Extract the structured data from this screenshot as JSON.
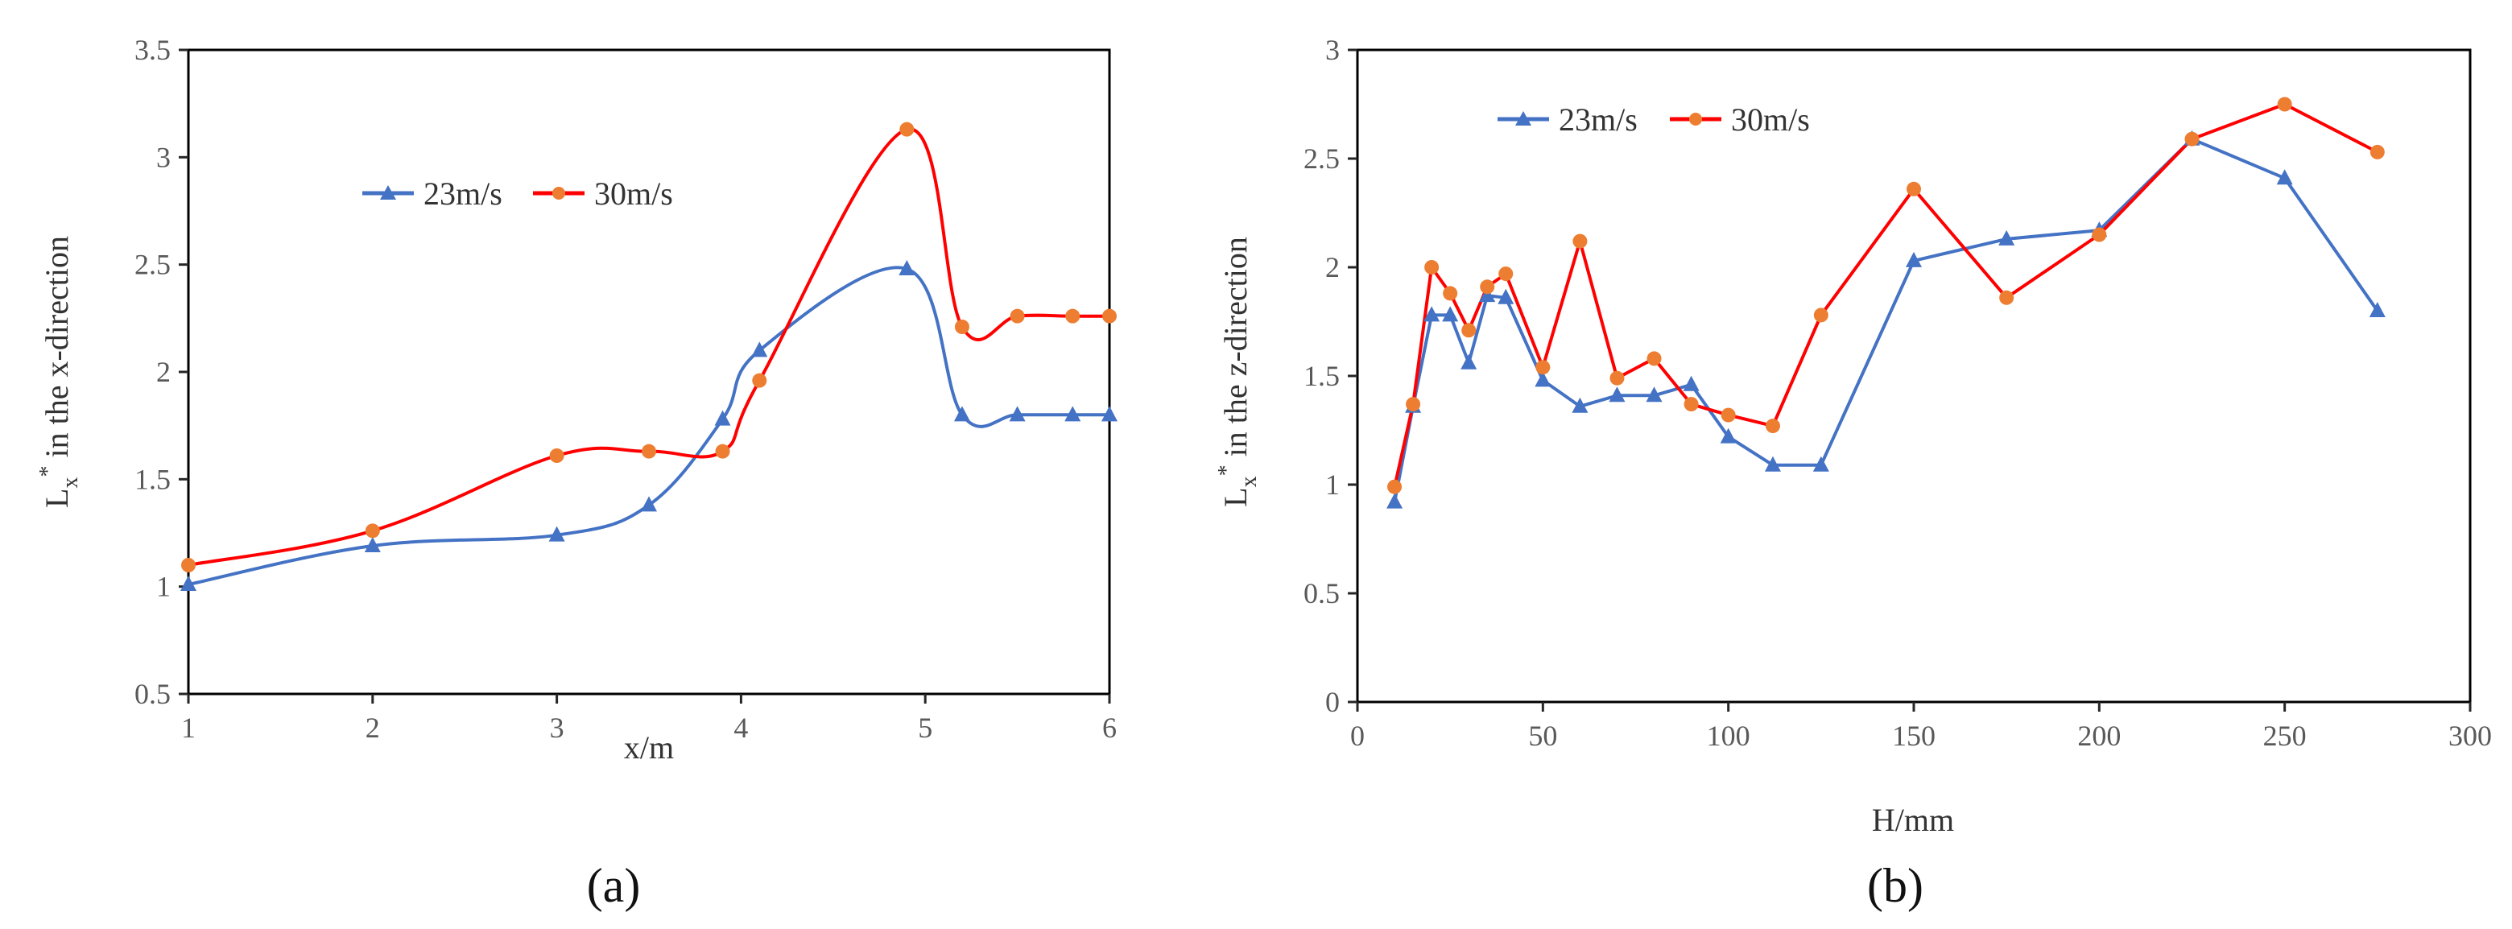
{
  "colors": {
    "series_blue": "#4472C4",
    "series_red": "#FF0000",
    "marker_orange": "#ED7D31",
    "axis": "#262626",
    "frame": "#000000"
  },
  "chart_data": [
    {
      "type": "line",
      "panel_label": "(a)",
      "xlabel": "x/m",
      "ylabel_main": "L",
      "ylabel_sub": "x",
      "ylabel_sup": "*",
      "ylabel_rest": " in the x-direction",
      "xlim": [
        1,
        6
      ],
      "ylim": [
        0.5,
        3.5
      ],
      "xticks": [
        "1",
        "2",
        "3",
        "4",
        "5",
        "6"
      ],
      "yticks": [
        "0.5",
        "1",
        "1.5",
        "2",
        "2.5",
        "3",
        "3.5"
      ],
      "smooth": true,
      "legend_position": "top-left",
      "series": [
        {
          "name": "23m/s",
          "color": "#4472C4",
          "marker": "triangle",
          "x": [
            1,
            2,
            3,
            3.5,
            3.9,
            4.1,
            4.9,
            5.2,
            5.5,
            5.8,
            6
          ],
          "y": [
            1.01,
            1.19,
            1.24,
            1.38,
            1.78,
            2.1,
            2.48,
            1.8,
            1.8,
            1.8,
            1.8
          ]
        },
        {
          "name": "30m/s",
          "color": "#FF0000",
          "marker": "circle",
          "x": [
            1,
            2,
            3,
            3.5,
            3.9,
            4.1,
            4.9,
            5.2,
            5.5,
            5.8,
            6
          ],
          "y": [
            1.1,
            1.26,
            1.61,
            1.63,
            1.63,
            1.96,
            3.13,
            2.21,
            2.26,
            2.26,
            2.26
          ]
        }
      ]
    },
    {
      "type": "line",
      "panel_label": "(b)",
      "xlabel": "H/mm",
      "ylabel_main": "L",
      "ylabel_sub": "x",
      "ylabel_sup": "*",
      "ylabel_rest": " in the z-direction",
      "xlim": [
        0,
        300
      ],
      "ylim": [
        0,
        3
      ],
      "xticks": [
        "0",
        "50",
        "100",
        "150",
        "200",
        "250",
        "300"
      ],
      "yticks": [
        "0",
        "0.5",
        "1",
        "1.5",
        "2",
        "2.5",
        "3"
      ],
      "smooth": false,
      "legend_position": "top-left",
      "series": [
        {
          "name": "23m/s",
          "color": "#4472C4",
          "marker": "triangle",
          "x": [
            10,
            15,
            20,
            25,
            30,
            35,
            40,
            50,
            60,
            70,
            80,
            90,
            100,
            112,
            125,
            150,
            175,
            200,
            225,
            250,
            275
          ],
          "y": [
            0.92,
            1.36,
            1.78,
            1.78,
            1.56,
            1.87,
            1.86,
            1.48,
            1.36,
            1.41,
            1.41,
            1.46,
            1.22,
            1.09,
            1.09,
            2.03,
            2.13,
            2.17,
            2.59,
            2.41,
            1.8
          ]
        },
        {
          "name": "30m/s",
          "color": "#FF0000",
          "marker": "circle",
          "x": [
            10,
            15,
            20,
            25,
            30,
            35,
            40,
            50,
            60,
            70,
            80,
            90,
            100,
            112,
            125,
            150,
            175,
            200,
            225,
            250,
            275
          ],
          "y": [
            0.99,
            1.37,
            2.0,
            1.88,
            1.71,
            1.91,
            1.97,
            1.54,
            2.12,
            1.49,
            1.58,
            1.37,
            1.32,
            1.27,
            1.78,
            2.36,
            1.86,
            2.15,
            2.59,
            2.75,
            2.53
          ]
        }
      ]
    }
  ]
}
